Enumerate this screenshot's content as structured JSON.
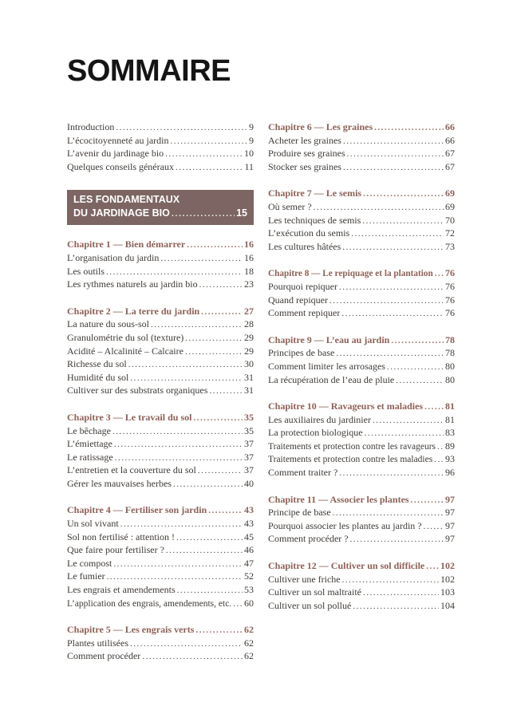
{
  "title": "SOMMAIRE",
  "colors": {
    "heading": "#8d6156",
    "banner_bg": "#7c6562",
    "banner_text": "#ffffff",
    "body_text": "#3f3a36"
  },
  "banner": {
    "line1": "LES FONDAMENTAUX",
    "line2": "DU JARDINAGE BIO",
    "page": "15"
  },
  "columns": [
    {
      "sections": [
        {
          "type": "entries",
          "items": [
            {
              "label": "Introduction",
              "page": "9"
            },
            {
              "label": "L’écocitoyenneté au jardin",
              "page": "9"
            },
            {
              "label": "L’avenir du jardinage bio",
              "page": "10"
            },
            {
              "label": "Quelques conseils généraux",
              "page": "11"
            }
          ]
        },
        {
          "type": "banner"
        },
        {
          "type": "chapter",
          "heading": {
            "label": "Chapitre 1 — Bien démarrer",
            "page": "16"
          },
          "items": [
            {
              "label": "L’organisation du jardin",
              "page": "16"
            },
            {
              "label": "Les outils",
              "page": "18"
            },
            {
              "label": "Les rythmes naturels au jardin bio",
              "page": "23"
            }
          ]
        },
        {
          "type": "chapter",
          "heading": {
            "label": "Chapitre 2 — La terre du jardin",
            "page": "27"
          },
          "items": [
            {
              "label": "La nature du sous-sol",
              "page": "28"
            },
            {
              "label": "Granulométrie du sol (texture)",
              "page": "29"
            },
            {
              "label": "Acidité – Alcalinité – Calcaire",
              "page": "29"
            },
            {
              "label": "Richesse du sol",
              "page": "30"
            },
            {
              "label": "Humidité du sol",
              "page": "31"
            },
            {
              "label": "Cultiver sur des substrats organiques",
              "page": "31"
            }
          ]
        },
        {
          "type": "chapter",
          "heading": {
            "label": "Chapitre 3 — Le travail du sol",
            "page": "35"
          },
          "items": [
            {
              "label": "Le bêchage",
              "page": "35"
            },
            {
              "label": "L’émiettage",
              "page": "37"
            },
            {
              "label": "Le ratissage",
              "page": "37"
            },
            {
              "label": "L’entretien et la couverture du sol",
              "page": "37"
            },
            {
              "label": "Gérer les mauvaises herbes",
              "page": "40"
            }
          ]
        },
        {
          "type": "chapter",
          "heading": {
            "label": "Chapitre 4 — Fertiliser son jardin",
            "page": "43"
          },
          "items": [
            {
              "label": "Un sol vivant",
              "page": "43"
            },
            {
              "label": "Sol non fertilisé : attention !",
              "page": "45"
            },
            {
              "label": "Que faire pour fertiliser ?",
              "page": "46"
            },
            {
              "label": "Le compost",
              "page": "47"
            },
            {
              "label": "Le fumier",
              "page": "52"
            },
            {
              "label": "Les engrais et amendements",
              "page": "53"
            },
            {
              "label": "L’application des engrais, amendements, etc.",
              "page": "60"
            }
          ]
        },
        {
          "type": "chapter",
          "heading": {
            "label": "Chapitre 5 — Les engrais verts",
            "page": "62"
          },
          "items": [
            {
              "label": "Plantes utilisées",
              "page": "62"
            },
            {
              "label": "Comment procéder",
              "page": "62"
            }
          ]
        }
      ]
    },
    {
      "sections": [
        {
          "type": "chapter",
          "heading": {
            "label": "Chapitre 6 — Les graines",
            "page": "66"
          },
          "items": [
            {
              "label": "Acheter les graines",
              "page": "66"
            },
            {
              "label": "Produire ses graines",
              "page": "67"
            },
            {
              "label": "Stocker ses graines",
              "page": "67"
            }
          ]
        },
        {
          "type": "chapter",
          "heading": {
            "label": "Chapitre 7 — Le semis",
            "page": "69"
          },
          "items": [
            {
              "label": "Où semer ?",
              "page": "69"
            },
            {
              "label": "Les techniques de semis",
              "page": "70"
            },
            {
              "label": "L’exécution du semis",
              "page": "72"
            },
            {
              "label": "Les cultures hâtées",
              "page": "73"
            }
          ]
        },
        {
          "type": "chapter",
          "heading": {
            "label": "Chapitre 8 — Le repiquage et la plantation",
            "page": "76"
          },
          "items": [
            {
              "label": "Pourquoi repiquer",
              "page": "76"
            },
            {
              "label": "Quand repiquer",
              "page": "76"
            },
            {
              "label": "Comment repiquer",
              "page": "76"
            }
          ]
        },
        {
          "type": "chapter",
          "heading": {
            "label": "Chapitre 9 — L’eau au jardin",
            "page": "78"
          },
          "items": [
            {
              "label": "Principes de base",
              "page": "78"
            },
            {
              "label": "Comment limiter les arrosages",
              "page": "80"
            },
            {
              "label": "La récupération de l’eau de pluie",
              "page": "80"
            }
          ]
        },
        {
          "type": "chapter",
          "heading": {
            "label": "Chapitre 10 — Ravageurs et maladies",
            "page": "81"
          },
          "items": [
            {
              "label": "Les auxiliaires du jardinier",
              "page": "81"
            },
            {
              "label": "La protection biologique",
              "page": "83"
            },
            {
              "label": "Traitements et protection contre les ravageurs",
              "page": "89"
            },
            {
              "label": "Traitements et protection contre les maladies",
              "page": "93"
            },
            {
              "label": "Comment traiter ?",
              "page": "96"
            }
          ]
        },
        {
          "type": "chapter",
          "heading": {
            "label": "Chapitre 11 — Associer les plantes",
            "page": "97"
          },
          "items": [
            {
              "label": "Principe de base",
              "page": "97"
            },
            {
              "label": "Pourquoi associer les plantes au jardin ?",
              "page": "97"
            },
            {
              "label": "Comment procéder ?",
              "page": "97"
            }
          ]
        },
        {
          "type": "chapter",
          "heading": {
            "label": "Chapitre 12 — Cultiver un sol difficile",
            "page": "102"
          },
          "items": [
            {
              "label": "Cultiver une friche",
              "page": "102"
            },
            {
              "label": "Cultiver un sol maltraité",
              "page": "103"
            },
            {
              "label": "Cultiver un sol pollué",
              "page": "104"
            }
          ]
        }
      ]
    }
  ]
}
